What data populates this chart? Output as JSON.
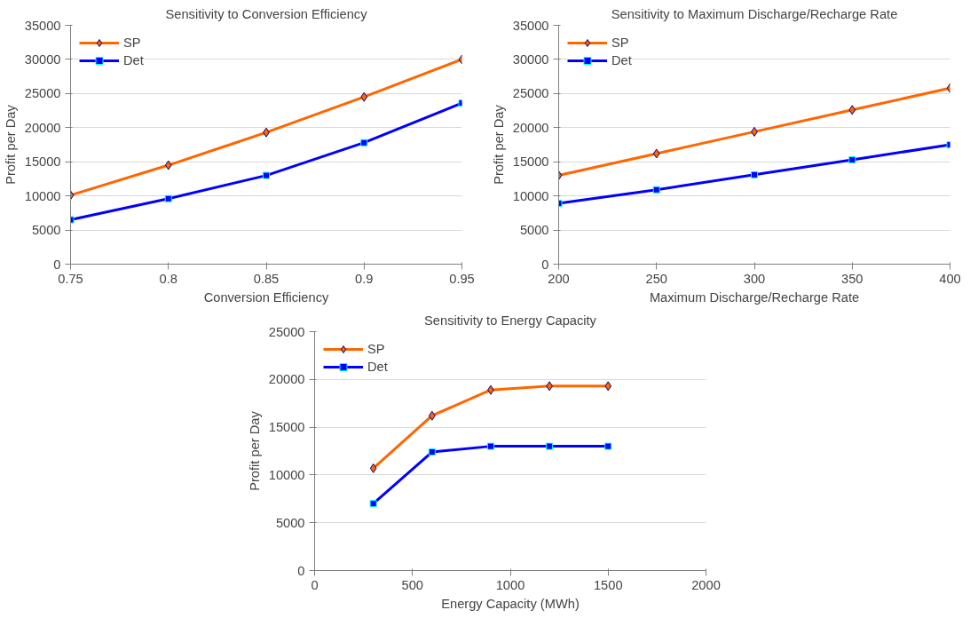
{
  "chart_data": [
    {
      "type": "line",
      "title": "Sensitivity to Conversion Efficiency",
      "xlabel": "Conversion Efficiency",
      "ylabel": "Profit per Day",
      "x": [
        0.75,
        0.8,
        0.85,
        0.9,
        0.95
      ],
      "xlim": [
        0.75,
        0.95
      ],
      "xticks": [
        0.75,
        0.8,
        0.85,
        0.9,
        0.95
      ],
      "ylim": [
        0,
        35000
      ],
      "yticks": [
        0,
        5000,
        10000,
        15000,
        20000,
        25000,
        30000,
        35000
      ],
      "grid": "y",
      "legend": "top left",
      "series": [
        {
          "name": "SP",
          "color": "#ff6600",
          "marker": "diamond",
          "values": [
            10100,
            14500,
            19300,
            24500,
            30000
          ]
        },
        {
          "name": "Det",
          "color": "#0000ff",
          "marker": "square",
          "values": [
            6500,
            9600,
            13000,
            17800,
            23600
          ]
        }
      ]
    },
    {
      "type": "line",
      "title": "Sensitivity to Maximum Discharge/Recharge Rate",
      "xlabel": "Maximum Discharge/Recharge Rate",
      "ylabel": "Profit per Day",
      "x": [
        200,
        250,
        300,
        350,
        400
      ],
      "xlim": [
        200,
        400
      ],
      "xticks": [
        200,
        250,
        300,
        350,
        400
      ],
      "ylim": [
        0,
        35000
      ],
      "yticks": [
        0,
        5000,
        10000,
        15000,
        20000,
        25000,
        30000,
        35000
      ],
      "grid": "y",
      "legend": "top left",
      "series": [
        {
          "name": "SP",
          "color": "#ff6600",
          "marker": "diamond",
          "values": [
            13000,
            16200,
            19400,
            22600,
            25800
          ]
        },
        {
          "name": "Det",
          "color": "#0000ff",
          "marker": "square",
          "values": [
            8900,
            10900,
            13100,
            15300,
            17500
          ]
        }
      ]
    },
    {
      "type": "line",
      "title": "Sensitivity to Energy Capacity",
      "xlabel": "Energy Capacity (MWh)",
      "ylabel": "Profit per Day",
      "x": [
        300,
        600,
        900,
        1200,
        1500
      ],
      "xlim": [
        0,
        2000
      ],
      "xticks": [
        0,
        500,
        1000,
        1500,
        2000
      ],
      "ylim": [
        0,
        25000
      ],
      "yticks": [
        0,
        5000,
        10000,
        15000,
        20000,
        25000
      ],
      "grid": "y",
      "legend": "top left",
      "series": [
        {
          "name": "SP",
          "color": "#ff6600",
          "marker": "diamond",
          "values": [
            10700,
            16200,
            18900,
            19300,
            19300
          ]
        },
        {
          "name": "Det",
          "color": "#0000ff",
          "marker": "square",
          "values": [
            7000,
            12400,
            13000,
            13000,
            13000
          ]
        }
      ]
    }
  ]
}
